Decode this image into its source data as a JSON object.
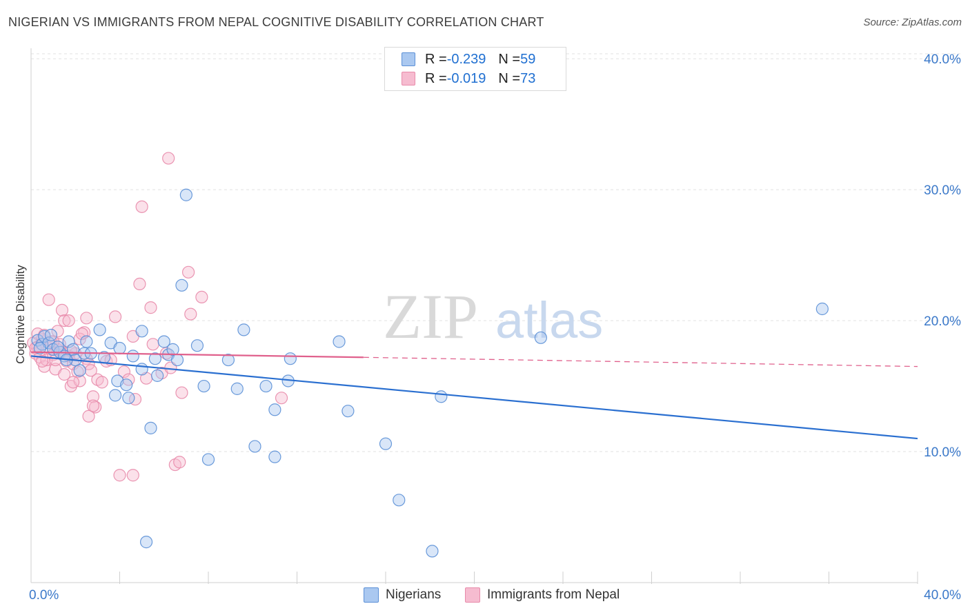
{
  "title": "NIGERIAN VS IMMIGRANTS FROM NEPAL COGNITIVE DISABILITY CORRELATION CHART",
  "source": "Source: ZipAtlas.com",
  "watermark": {
    "zip": "ZIP",
    "atlas": "atlas"
  },
  "legend": {
    "nigerians": {
      "r_label": "R = ",
      "r_value": "-0.239",
      "n_label": "N = ",
      "n_value": "59"
    },
    "nepal": {
      "r_label": "R = ",
      "r_value": "-0.019",
      "n_label": "N = ",
      "n_value": "73"
    }
  },
  "series_labels": {
    "nigerians": "Nigerians",
    "nepal": "Immigrants from Nepal"
  },
  "colors": {
    "nigerians_fill": "#aac8f0",
    "nigerians_stroke": "#5a8fd6",
    "nigerians_line": "#2a6fd0",
    "nepal_fill": "#f6bcd0",
    "nepal_stroke": "#e88aaa",
    "nepal_line": "#e0608c",
    "axis_label": "#3a78c9",
    "grid": "#e2e2e2"
  },
  "chart_data": {
    "type": "scatter",
    "title": "NIGERIAN VS IMMIGRANTS FROM NEPAL COGNITIVE DISABILITY CORRELATION CHART",
    "xlabel": "",
    "ylabel": "Cognitive Disability",
    "xlim": [
      0,
      40
    ],
    "ylim": [
      0,
      40.8
    ],
    "x_tick_labels": [
      "0.0%",
      "40.0%"
    ],
    "y_ticks": [
      10,
      20,
      30,
      40
    ],
    "y_tick_labels": [
      "10.0%",
      "20.0%",
      "30.0%",
      "40.0%"
    ],
    "grid": true,
    "series": [
      {
        "name": "Nigerians",
        "points": [
          [
            0.3,
            18.5
          ],
          [
            0.5,
            18.2
          ],
          [
            0.6,
            18.8
          ],
          [
            0.8,
            18.3
          ],
          [
            1.0,
            17.8
          ],
          [
            1.3,
            17.6
          ],
          [
            1.5,
            17.3
          ],
          [
            1.7,
            18.4
          ],
          [
            1.9,
            17.8
          ],
          [
            2.0,
            17.0
          ],
          [
            2.2,
            16.2
          ],
          [
            2.5,
            18.4
          ],
          [
            2.4,
            17.5
          ],
          [
            3.1,
            19.3
          ],
          [
            3.3,
            17.2
          ],
          [
            3.6,
            18.3
          ],
          [
            3.8,
            14.3
          ],
          [
            3.9,
            15.4
          ],
          [
            4.0,
            17.9
          ],
          [
            4.3,
            15.1
          ],
          [
            4.4,
            14.1
          ],
          [
            4.6,
            17.3
          ],
          [
            5.0,
            19.2
          ],
          [
            5.0,
            16.3
          ],
          [
            5.4,
            11.8
          ],
          [
            5.6,
            17.1
          ],
          [
            5.7,
            15.8
          ],
          [
            6.0,
            18.4
          ],
          [
            6.2,
            17.4
          ],
          [
            6.4,
            17.8
          ],
          [
            6.6,
            17.0
          ],
          [
            6.8,
            22.7
          ],
          [
            7.0,
            29.6
          ],
          [
            7.5,
            18.1
          ],
          [
            7.8,
            15.0
          ],
          [
            8.0,
            9.4
          ],
          [
            8.9,
            17.0
          ],
          [
            9.3,
            14.8
          ],
          [
            9.6,
            19.3
          ],
          [
            10.1,
            10.4
          ],
          [
            10.6,
            15.0
          ],
          [
            11.0,
            9.6
          ],
          [
            11.0,
            13.2
          ],
          [
            11.6,
            15.4
          ],
          [
            11.7,
            17.1
          ],
          [
            13.9,
            18.4
          ],
          [
            14.3,
            13.1
          ],
          [
            16.0,
            10.6
          ],
          [
            16.6,
            6.3
          ],
          [
            18.1,
            2.4
          ],
          [
            18.5,
            14.2
          ],
          [
            23.0,
            18.7
          ],
          [
            35.7,
            20.9
          ],
          [
            5.2,
            3.1
          ],
          [
            0.9,
            18.9
          ],
          [
            1.2,
            18.0
          ],
          [
            2.7,
            17.5
          ],
          [
            0.4,
            17.9
          ],
          [
            1.6,
            17.0
          ]
        ]
      },
      {
        "name": "Immigrants from Nepal",
        "points": [
          [
            0.1,
            18.3
          ],
          [
            0.2,
            17.5
          ],
          [
            0.3,
            18.0
          ],
          [
            0.4,
            17.2
          ],
          [
            0.5,
            18.6
          ],
          [
            0.6,
            16.5
          ],
          [
            0.7,
            17.0
          ],
          [
            0.8,
            17.9
          ],
          [
            0.9,
            18.4
          ],
          [
            1.0,
            17.4
          ],
          [
            1.1,
            16.3
          ],
          [
            1.2,
            17.8
          ],
          [
            1.3,
            18.2
          ],
          [
            1.4,
            17.6
          ],
          [
            1.5,
            15.9
          ],
          [
            1.6,
            16.9
          ],
          [
            1.7,
            17.3
          ],
          [
            1.8,
            15.0
          ],
          [
            1.9,
            16.7
          ],
          [
            2.0,
            17.5
          ],
          [
            2.1,
            16.1
          ],
          [
            2.2,
            15.4
          ],
          [
            2.4,
            19.1
          ],
          [
            2.5,
            17.1
          ],
          [
            2.6,
            16.7
          ],
          [
            2.8,
            14.2
          ],
          [
            2.9,
            13.4
          ],
          [
            3.0,
            15.5
          ],
          [
            3.2,
            15.3
          ],
          [
            3.4,
            16.9
          ],
          [
            0.8,
            21.6
          ],
          [
            1.4,
            20.8
          ],
          [
            1.5,
            20.0
          ],
          [
            1.7,
            20.0
          ],
          [
            2.5,
            20.2
          ],
          [
            3.8,
            20.3
          ],
          [
            4.6,
            18.8
          ],
          [
            4.7,
            14.0
          ],
          [
            4.9,
            22.8
          ],
          [
            5.0,
            28.7
          ],
          [
            5.4,
            21.0
          ],
          [
            5.5,
            18.2
          ],
          [
            5.9,
            16.0
          ],
          [
            6.1,
            17.5
          ],
          [
            6.2,
            32.4
          ],
          [
            6.5,
            9.0
          ],
          [
            6.7,
            9.2
          ],
          [
            6.8,
            14.5
          ],
          [
            7.1,
            23.7
          ],
          [
            7.2,
            20.5
          ],
          [
            7.7,
            21.8
          ],
          [
            11.3,
            14.1
          ],
          [
            4.0,
            8.2
          ],
          [
            4.6,
            8.2
          ],
          [
            2.6,
            12.7
          ],
          [
            2.8,
            13.5
          ],
          [
            1.2,
            19.2
          ],
          [
            1.9,
            15.3
          ],
          [
            0.3,
            19.0
          ],
          [
            0.5,
            16.9
          ],
          [
            1.0,
            18.4
          ],
          [
            2.2,
            18.6
          ],
          [
            3.6,
            17.0
          ],
          [
            4.2,
            16.1
          ],
          [
            5.2,
            15.6
          ],
          [
            6.3,
            16.4
          ],
          [
            0.2,
            17.9
          ],
          [
            0.6,
            18.9
          ],
          [
            1.1,
            17.0
          ],
          [
            1.8,
            17.7
          ],
          [
            2.3,
            19.0
          ],
          [
            2.7,
            16.2
          ],
          [
            4.4,
            15.5
          ]
        ]
      }
    ],
    "trend_lines": [
      {
        "series": "Nigerians",
        "x": [
          0,
          40
        ],
        "y": [
          17.3,
          11.0
        ],
        "style": "solid"
      },
      {
        "series": "Immigrants from Nepal",
        "x": [
          0,
          15.0
        ],
        "y": [
          17.6,
          17.2
        ],
        "style": "solid"
      },
      {
        "series": "Immigrants from Nepal",
        "x": [
          15.0,
          40
        ],
        "y": [
          17.2,
          16.5
        ],
        "style": "dashed"
      }
    ]
  }
}
